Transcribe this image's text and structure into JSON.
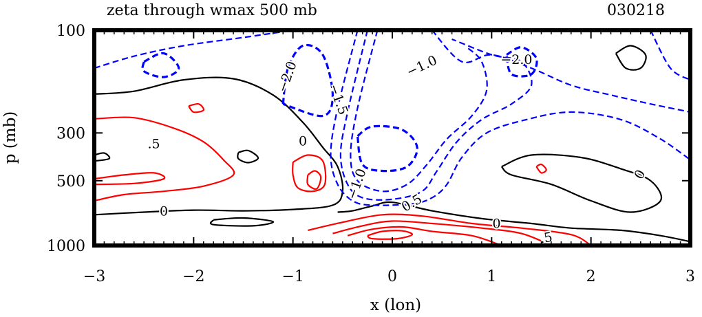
{
  "chart_data": {
    "type": "contour",
    "title": "zeta through wmax 500 mb",
    "date_label": "030218",
    "xlabel": "x (lon)",
    "ylabel": "p (mb)",
    "xlim": [
      -3,
      3
    ],
    "ylim": [
      1000,
      100
    ],
    "x_ticks": [
      -3,
      -2,
      -1,
      0,
      1,
      2,
      3
    ],
    "x_tick_labels": [
      "−3",
      "−2",
      "−1",
      "0",
      "1",
      "2",
      "3"
    ],
    "y_ticks": [
      100,
      300,
      500,
      1000
    ],
    "y_tick_labels": [
      "100",
      "300",
      "500",
      "1000"
    ],
    "colors": {
      "positive": "#ff0000",
      "zero": "#000000",
      "negative": "#0000ff"
    },
    "contours": [
      {
        "level": 0,
        "style": "solid",
        "color": "black",
        "points": [
          [
            -3,
            198
          ],
          [
            -2.6,
            192
          ],
          [
            -2.1,
            170
          ],
          [
            -1.6,
            168
          ],
          [
            -1.2,
            200
          ],
          [
            -0.9,
            268
          ],
          [
            -0.7,
            350
          ],
          [
            -0.55,
            430
          ],
          [
            -0.5,
            560
          ],
          [
            -0.6,
            650
          ],
          [
            -1.0,
            680
          ],
          [
            -1.5,
            690
          ],
          [
            -2.0,
            685
          ],
          [
            -2.5,
            700
          ],
          [
            -3,
            720
          ]
        ]
      },
      {
        "level": 0,
        "style": "solid",
        "color": "black",
        "points": [
          [
            -0.55,
            700
          ],
          [
            -0.4,
            690
          ],
          [
            -0.2,
            655
          ],
          [
            0,
            630
          ],
          [
            0.4,
            690
          ],
          [
            0.9,
            750
          ],
          [
            1.4,
            790
          ],
          [
            1.8,
            830
          ],
          [
            2.3,
            850
          ],
          [
            2.7,
            900
          ],
          [
            3,
            960
          ]
        ]
      },
      {
        "level": 0,
        "style": "solid",
        "color": "black",
        "points": [
          [
            1.1,
            430
          ],
          [
            1.4,
            380
          ],
          [
            1.9,
            390
          ],
          [
            2.3,
            440
          ],
          [
            2.6,
            500
          ],
          [
            2.7,
            620
          ],
          [
            2.4,
            700
          ],
          [
            2.0,
            620
          ],
          [
            1.6,
            520
          ],
          [
            1.2,
            470
          ],
          [
            1.1,
            430
          ]
        ]
      },
      {
        "level": 0,
        "style": "solid",
        "color": "black",
        "points": [
          [
            2.25,
            128
          ],
          [
            2.4,
            118
          ],
          [
            2.55,
            130
          ],
          [
            2.5,
            150
          ],
          [
            2.35,
            150
          ],
          [
            2.25,
            128
          ]
        ]
      },
      {
        "level": 0,
        "style": "solid",
        "color": "black",
        "points": [
          [
            -1.55,
            370
          ],
          [
            -1.45,
            362
          ],
          [
            -1.35,
            392
          ],
          [
            -1.45,
            412
          ],
          [
            -1.55,
            395
          ],
          [
            -1.55,
            370
          ]
        ]
      },
      {
        "level": 0,
        "style": "solid",
        "color": "black",
        "points": [
          [
            -3,
            380
          ],
          [
            -2.9,
            372
          ],
          [
            -2.85,
            395
          ],
          [
            -3,
            405
          ]
        ]
      },
      {
        "level": 0,
        "style": "solid",
        "color": "black",
        "points": [
          [
            -1.8,
            760
          ],
          [
            -1.5,
            745
          ],
          [
            -1.2,
            775
          ],
          [
            -1.4,
            810
          ],
          [
            -1.8,
            800
          ],
          [
            -1.8,
            760
          ]
        ]
      },
      {
        "level": 0.5,
        "style": "solid",
        "color": "red",
        "points": [
          [
            -3,
            258
          ],
          [
            -2.6,
            255
          ],
          [
            -2.2,
            285
          ],
          [
            -1.9,
            330
          ],
          [
            -1.7,
            400
          ],
          [
            -1.6,
            470
          ],
          [
            -1.9,
            530
          ],
          [
            -2.3,
            560
          ],
          [
            -2.7,
            580
          ],
          [
            -3,
            620
          ]
        ]
      },
      {
        "level": 0.5,
        "style": "solid",
        "color": "red",
        "points": [
          [
            -3,
            490
          ],
          [
            -2.7,
            470
          ],
          [
            -2.4,
            460
          ],
          [
            -2.3,
            490
          ],
          [
            -2.6,
            515
          ],
          [
            -3,
            520
          ]
        ]
      },
      {
        "level": 0.5,
        "style": "solid",
        "color": "red",
        "points": [
          [
            -2.05,
            225
          ],
          [
            -1.95,
            220
          ],
          [
            -1.9,
            235
          ],
          [
            -2.0,
            240
          ],
          [
            -2.05,
            225
          ]
        ]
      },
      {
        "level": 0.5,
        "style": "solid",
        "color": "red",
        "points": [
          [
            -1.0,
            410
          ],
          [
            -0.85,
            380
          ],
          [
            -0.7,
            405
          ],
          [
            -0.68,
            520
          ],
          [
            -0.8,
            560
          ],
          [
            -0.95,
            540
          ],
          [
            -1.0,
            470
          ],
          [
            -1.0,
            410
          ]
        ]
      },
      {
        "level": 0.5,
        "style": "solid",
        "color": "red",
        "points": [
          [
            -0.85,
            470
          ],
          [
            -0.78,
            450
          ],
          [
            -0.72,
            480
          ],
          [
            -0.76,
            545
          ],
          [
            -0.85,
            520
          ],
          [
            -0.85,
            470
          ]
        ]
      },
      {
        "level": 0.5,
        "style": "solid",
        "color": "red",
        "points": [
          [
            1.45,
            430
          ],
          [
            1.5,
            420
          ],
          [
            1.55,
            445
          ],
          [
            1.5,
            460
          ],
          [
            1.45,
            430
          ]
        ]
      },
      {
        "level": 0.5,
        "style": "solid",
        "color": "red",
        "points": [
          [
            -0.85,
            850
          ],
          [
            -0.5,
            780
          ],
          [
            -0.1,
            720
          ],
          [
            0.3,
            730
          ],
          [
            0.8,
            790
          ],
          [
            1.3,
            830
          ],
          [
            1.8,
            890
          ],
          [
            2.0,
            1000
          ]
        ]
      },
      {
        "level": 1.0,
        "style": "solid",
        "color": "red",
        "points": [
          [
            -0.6,
            880
          ],
          [
            -0.3,
            810
          ],
          [
            0,
            770
          ],
          [
            0.4,
            790
          ],
          [
            0.9,
            830
          ],
          [
            1.3,
            880
          ],
          [
            1.6,
            1000
          ]
        ]
      },
      {
        "level": 1.5,
        "style": "solid",
        "color": "red",
        "points": [
          [
            -0.45,
            900
          ],
          [
            -0.2,
            840
          ],
          [
            0.1,
            820
          ],
          [
            0.4,
            860
          ],
          [
            0.8,
            900
          ],
          [
            1.1,
            1000
          ]
        ]
      },
      {
        "level": 2.0,
        "style": "solid",
        "color": "red",
        "points": [
          [
            -0.25,
            900
          ],
          [
            -0.1,
            860
          ],
          [
            0.1,
            855
          ],
          [
            0.2,
            890
          ],
          [
            0.05,
            930
          ],
          [
            -0.2,
            930
          ],
          [
            -0.25,
            900
          ]
        ]
      },
      {
        "level": -0.5,
        "style": "dashed",
        "color": "blue",
        "points": [
          [
            -3,
            150
          ],
          [
            -2.6,
            132
          ],
          [
            -2.1,
            118
          ],
          [
            -1.5,
            108
          ],
          [
            -1.0,
            100
          ]
        ]
      },
      {
        "level": -0.5,
        "style": "dashed",
        "color": "blue",
        "points": [
          [
            0.4,
            100
          ],
          [
            0.7,
            140
          ],
          [
            1.0,
            130
          ],
          [
            1.4,
            150
          ],
          [
            1.8,
            180
          ],
          [
            2.2,
            200
          ],
          [
            2.6,
            220
          ],
          [
            3,
            240
          ]
        ]
      },
      {
        "level": -0.5,
        "style": "dashed",
        "color": "blue",
        "points": [
          [
            2.6,
            100
          ],
          [
            2.8,
            150
          ],
          [
            3,
            170
          ]
        ]
      },
      {
        "level": -0.5,
        "style": "dashed",
        "color": "blue",
        "points": [
          [
            -0.35,
            100
          ],
          [
            -0.55,
            230
          ],
          [
            -0.62,
            380
          ],
          [
            -0.55,
            520
          ],
          [
            -0.4,
            620
          ],
          [
            -0.2,
            650
          ],
          [
            0.2,
            640
          ],
          [
            0.4,
            600
          ],
          [
            0.55,
            520
          ],
          [
            0.7,
            390
          ],
          [
            0.95,
            300
          ],
          [
            1.35,
            260
          ],
          [
            1.8,
            240
          ],
          [
            2.3,
            260
          ],
          [
            2.7,
            320
          ],
          [
            3,
            400
          ]
        ]
      },
      {
        "level": -1.0,
        "style": "dashed",
        "color": "blue",
        "points": [
          [
            -0.25,
            100
          ],
          [
            -0.45,
            240
          ],
          [
            -0.52,
            380
          ],
          [
            -0.45,
            520
          ],
          [
            -0.3,
            600
          ],
          [
            0,
            610
          ],
          [
            0.3,
            560
          ],
          [
            0.45,
            450
          ],
          [
            0.65,
            330
          ],
          [
            0.9,
            260
          ],
          [
            1.2,
            220
          ],
          [
            1.4,
            180
          ],
          [
            1.3,
            140
          ],
          [
            1.0,
            130
          ],
          [
            0.6,
            110
          ]
        ]
      },
      {
        "level": -1.5,
        "style": "dashed",
        "color": "blue",
        "points": [
          [
            -0.15,
            100
          ],
          [
            -0.35,
            230
          ],
          [
            -0.42,
            380
          ],
          [
            -0.35,
            500
          ],
          [
            -0.1,
            560
          ],
          [
            0.15,
            520
          ],
          [
            0.35,
            420
          ],
          [
            0.55,
            320
          ],
          [
            0.8,
            250
          ],
          [
            0.95,
            190
          ],
          [
            0.9,
            140
          ],
          [
            0.75,
            120
          ]
        ]
      },
      {
        "level": -2.0,
        "style": "dashed",
        "color": "blue",
        "points": [
          [
            -1.1,
            220
          ],
          [
            -1.05,
            150
          ],
          [
            -0.9,
            118
          ],
          [
            -0.7,
            130
          ],
          [
            -0.6,
            200
          ],
          [
            -0.7,
            250
          ],
          [
            -1.1,
            220
          ]
        ]
      },
      {
        "level": -2.0,
        "style": "dashed",
        "color": "blue",
        "points": [
          [
            -0.35,
            310
          ],
          [
            -0.2,
            280
          ],
          [
            0.1,
            290
          ],
          [
            0.25,
            350
          ],
          [
            0.15,
            430
          ],
          [
            -0.1,
            450
          ],
          [
            -0.3,
            420
          ],
          [
            -0.35,
            310
          ]
        ]
      },
      {
        "level": -2.0,
        "style": "dashed",
        "color": "blue",
        "points": [
          [
            1.15,
            130
          ],
          [
            1.3,
            120
          ],
          [
            1.45,
            135
          ],
          [
            1.4,
            160
          ],
          [
            1.2,
            160
          ],
          [
            1.15,
            130
          ]
        ]
      },
      {
        "level": -2.0,
        "style": "dashed",
        "color": "blue",
        "points": [
          [
            -2.5,
            140
          ],
          [
            -2.3,
            128
          ],
          [
            -2.15,
            150
          ],
          [
            -2.3,
            165
          ],
          [
            -2.5,
            155
          ],
          [
            -2.5,
            140
          ]
        ]
      }
    ],
    "contour_labels": [
      {
        "text": "−2.0",
        "x": -1.05,
        "y": 165,
        "angle": -70,
        "color": "black"
      },
      {
        "text": "−1.5",
        "x": -0.55,
        "y": 210,
        "angle": 70,
        "color": "black"
      },
      {
        "text": "−1.0",
        "x": 0.3,
        "y": 148,
        "angle": -25,
        "color": "black"
      },
      {
        "text": "−2.0",
        "x": 1.25,
        "y": 138,
        "angle": 0,
        "color": "black"
      },
      {
        "text": ".5",
        "x": -2.4,
        "y": 340,
        "angle": 0,
        "color": "black"
      },
      {
        "text": "0",
        "x": -0.9,
        "y": 330,
        "angle": 0,
        "color": "black"
      },
      {
        "text": "0",
        "x": 2.5,
        "y": 470,
        "angle": -60,
        "color": "black"
      },
      {
        "text": "0",
        "x": -2.3,
        "y": 700,
        "angle": 0,
        "color": "black"
      },
      {
        "text": "−1.0",
        "x": -0.35,
        "y": 520,
        "angle": -70,
        "color": "black"
      },
      {
        "text": "0.5",
        "x": 0.2,
        "y": 640,
        "angle": -30,
        "color": "black"
      },
      {
        "text": "0",
        "x": 1.05,
        "y": 800,
        "angle": 0,
        "color": "black"
      },
      {
        "text": ".5",
        "x": 1.55,
        "y": 930,
        "angle": -10,
        "color": "black"
      }
    ]
  }
}
